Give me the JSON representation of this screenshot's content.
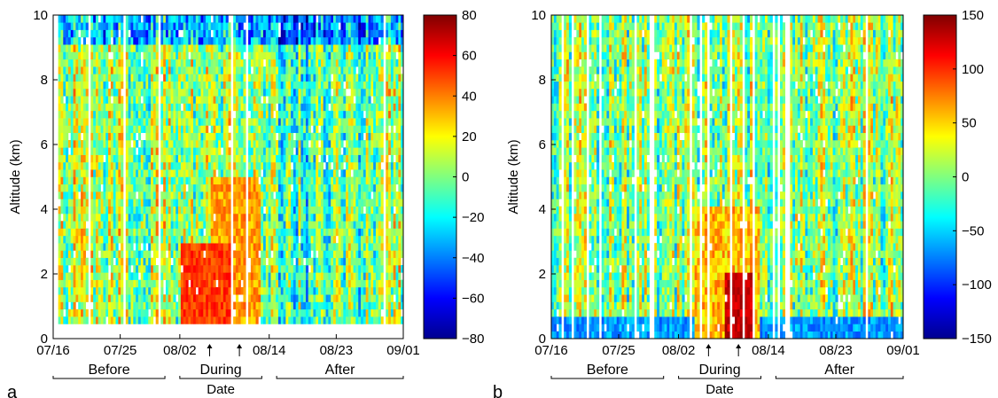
{
  "chart_data": [
    {
      "type": "heatmap",
      "panel_letter": "a",
      "ylabel": "Altitude (km)",
      "xlabel": "Date",
      "ylim": [
        0,
        10
      ],
      "y_ticks": [
        "0",
        "2",
        "4",
        "6",
        "8",
        "10"
      ],
      "x_ticks": [
        "07/16",
        "07/25",
        "08/02",
        "08/14",
        "08/23",
        "09/01"
      ],
      "x_tick_days": [
        0,
        9,
        17,
        29,
        38,
        47
      ],
      "x_range_days": [
        0,
        47
      ],
      "periods": [
        {
          "label": "Before",
          "start_day": 0,
          "end_day": 15
        },
        {
          "label": "During",
          "start_day": 17,
          "end_day": 28
        },
        {
          "label": "After",
          "start_day": 30,
          "end_day": 47
        }
      ],
      "arrow_days": [
        21,
        25
      ],
      "colorbar": {
        "min": -80,
        "max": 80,
        "ticks": [
          "80",
          "60",
          "40",
          "20",
          "0",
          "−20",
          "−40",
          "−60",
          "−80"
        ],
        "colormap": "jet"
      },
      "colors": [
        "#00008f",
        "#0000ff",
        "#00ffff",
        "#ffff00",
        "#ff0000",
        "#800000"
      ]
    },
    {
      "type": "heatmap",
      "panel_letter": "b",
      "ylabel": "Altitude (km)",
      "xlabel": "Date",
      "ylim": [
        0,
        10
      ],
      "y_ticks": [
        "0",
        "2",
        "4",
        "6",
        "8",
        "10"
      ],
      "x_ticks": [
        "07/16",
        "07/25",
        "08/02",
        "08/14",
        "08/23",
        "09/01"
      ],
      "x_tick_days": [
        0,
        9,
        17,
        29,
        38,
        47
      ],
      "x_range_days": [
        0,
        47
      ],
      "periods": [
        {
          "label": "Before",
          "start_day": 0,
          "end_day": 15
        },
        {
          "label": "During",
          "start_day": 17,
          "end_day": 28
        },
        {
          "label": "After",
          "start_day": 30,
          "end_day": 47
        }
      ],
      "arrow_days": [
        21,
        25
      ],
      "colorbar": {
        "min": -150,
        "max": 150,
        "ticks": [
          "150",
          "100",
          "50",
          "0",
          "−50",
          "−100",
          "−150"
        ],
        "colormap": "jet"
      },
      "colors": [
        "#00008f",
        "#0000ff",
        "#00ffff",
        "#ffff00",
        "#ff0000",
        "#800000"
      ]
    }
  ]
}
